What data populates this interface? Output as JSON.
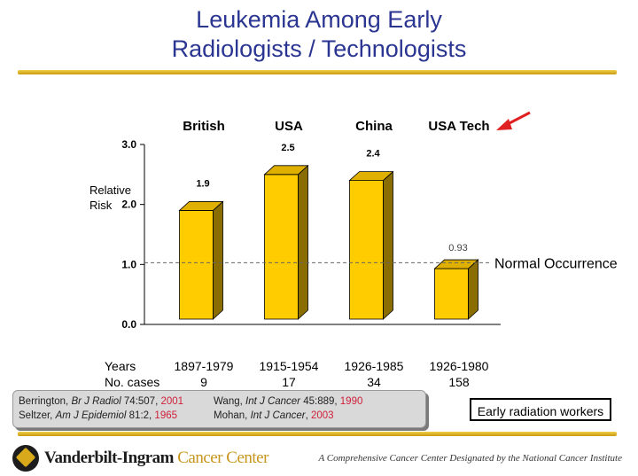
{
  "slide": {
    "title_line1": "Leukemia Among Early",
    "title_line2": "Radiologists / Technologists"
  },
  "chart_data": {
    "type": "bar",
    "categories": [
      "British",
      "USA",
      "China",
      "USA Tech"
    ],
    "values": [
      1.9,
      2.5,
      2.4,
      0.93
    ],
    "value_labels": [
      "1.9",
      "2.5",
      "2.4",
      "0.93"
    ],
    "ylabel_line1": "Relative",
    "ylabel_line2": "Risk",
    "ylim": [
      0.0,
      3.0
    ],
    "yticks": [
      "0.0",
      "1.0",
      "2.0",
      "3.0"
    ],
    "reference_line": {
      "value": 1.0,
      "label": "Normal Occurrence"
    },
    "bar_color": "#ffcc00",
    "bar_dark_color": "#8a6d00",
    "arrow_color": "#e02020",
    "years_label": "Years",
    "years": [
      "1897-1979",
      "1915-1954",
      "1926-1985",
      "1926-1980"
    ],
    "cases_label": "No. cases",
    "cases": [
      "9",
      "17",
      "34",
      "158"
    ]
  },
  "references": {
    "r1_author": "Berrington, ",
    "r1_journal": "Br J Radiol",
    "r1_cite": " 74:507, ",
    "r1_year": "2001",
    "r2_author": "Seltzer, ",
    "r2_journal": "Am J Epidemiol",
    "r2_cite": " 81:2, ",
    "r2_year": "1965",
    "r3_author": "Wang, ",
    "r3_journal": "Int J Cancer",
    "r3_cite": " 45:889, ",
    "r3_year": "1990",
    "r4_author": "Mohan, ",
    "r4_journal": "Int J Cancer",
    "r4_cite": ", ",
    "r4_year": "2003"
  },
  "note_box": "Early radiation workers",
  "footer": {
    "logo_name": "Vanderbilt-Ingram ",
    "logo_name_accent": "Cancer Center",
    "tagline": "A Comprehensive Cancer Center Designated by the National Cancer Institute"
  }
}
